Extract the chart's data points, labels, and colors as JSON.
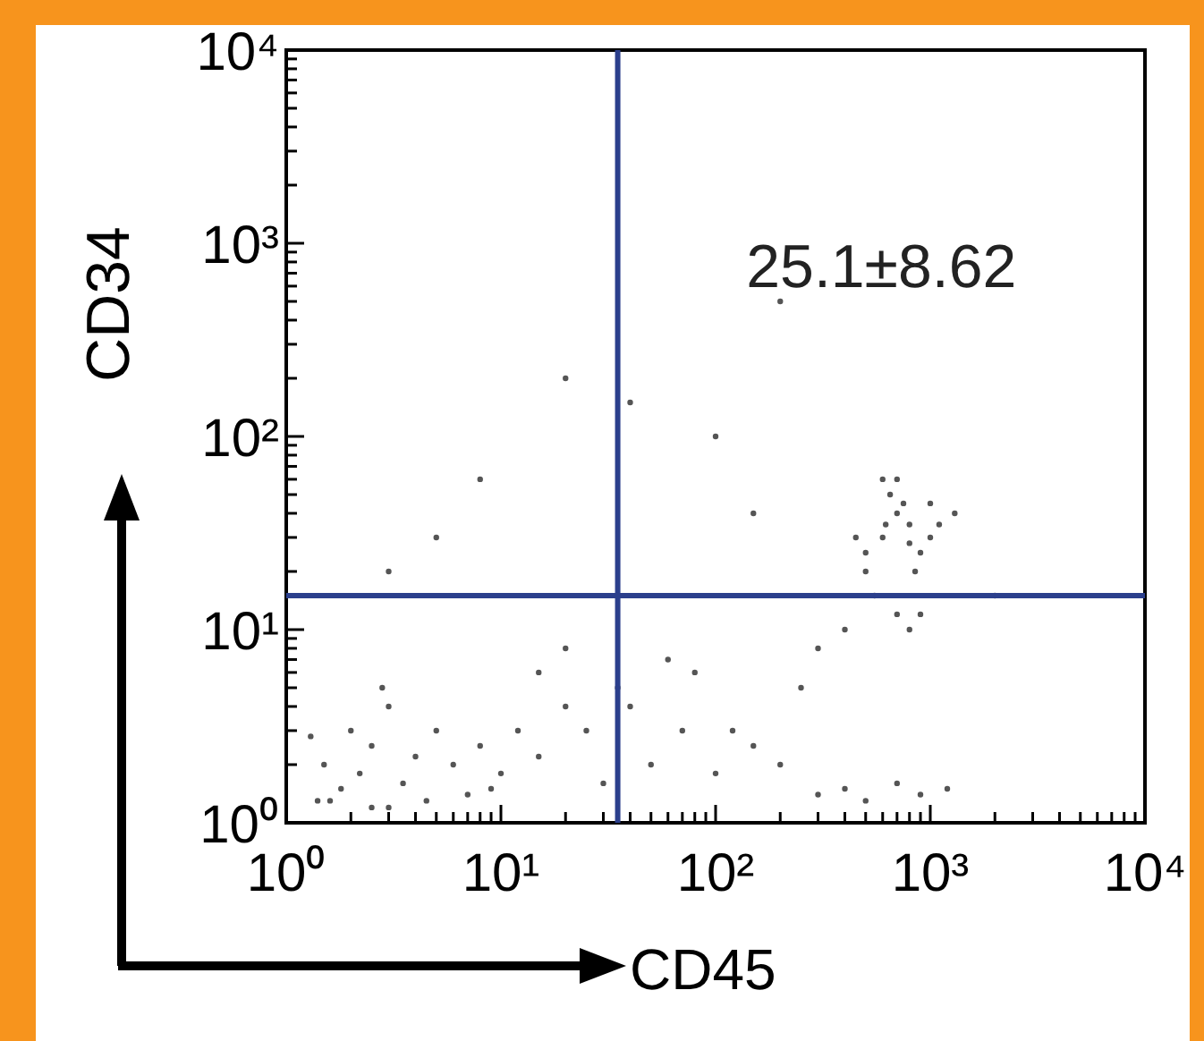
{
  "chart_data": {
    "type": "scatter",
    "xlabel": "CD45",
    "ylabel": "CD34",
    "log": "xy",
    "marker": "circle",
    "grid": false,
    "xlim": [
      1,
      10000
    ],
    "ylim": [
      1,
      10000
    ],
    "xticks": [
      {
        "value": 1,
        "label": "10⁰"
      },
      {
        "value": 2,
        "label": null
      },
      {
        "value": 3,
        "label": null
      },
      {
        "value": 4,
        "label": null
      },
      {
        "value": 5,
        "label": null
      },
      {
        "value": 6,
        "label": null
      },
      {
        "value": 7,
        "label": null
      },
      {
        "value": 8,
        "label": null
      },
      {
        "value": 9,
        "label": null
      },
      {
        "value": 10,
        "label": "10¹"
      },
      {
        "value": 20,
        "label": null
      },
      {
        "value": 30,
        "label": null
      },
      {
        "value": 40,
        "label": null
      },
      {
        "value": 50,
        "label": null
      },
      {
        "value": 60,
        "label": null
      },
      {
        "value": 70,
        "label": null
      },
      {
        "value": 80,
        "label": null
      },
      {
        "value": 90,
        "label": null
      },
      {
        "value": 100,
        "label": "10²"
      },
      {
        "value": 200,
        "label": null
      },
      {
        "value": 300,
        "label": null
      },
      {
        "value": 400,
        "label": null
      },
      {
        "value": 500,
        "label": null
      },
      {
        "value": 600,
        "label": null
      },
      {
        "value": 700,
        "label": null
      },
      {
        "value": 800,
        "label": null
      },
      {
        "value": 900,
        "label": null
      },
      {
        "value": 1000,
        "label": "10³"
      },
      {
        "value": 2000,
        "label": null
      },
      {
        "value": 3000,
        "label": null
      },
      {
        "value": 4000,
        "label": null
      },
      {
        "value": 5000,
        "label": null
      },
      {
        "value": 6000,
        "label": null
      },
      {
        "value": 7000,
        "label": null
      },
      {
        "value": 8000,
        "label": null
      },
      {
        "value": 9000,
        "label": null
      },
      {
        "value": 10000,
        "label": "10⁴"
      }
    ],
    "yticks": [
      {
        "value": 1,
        "label": "10⁰"
      },
      {
        "value": 2,
        "label": null
      },
      {
        "value": 3,
        "label": null
      },
      {
        "value": 4,
        "label": null
      },
      {
        "value": 5,
        "label": null
      },
      {
        "value": 6,
        "label": null
      },
      {
        "value": 7,
        "label": null
      },
      {
        "value": 8,
        "label": null
      },
      {
        "value": 9,
        "label": null
      },
      {
        "value": 10,
        "label": "10¹"
      },
      {
        "value": 20,
        "label": null
      },
      {
        "value": 30,
        "label": null
      },
      {
        "value": 40,
        "label": null
      },
      {
        "value": 50,
        "label": null
      },
      {
        "value": 60,
        "label": null
      },
      {
        "value": 70,
        "label": null
      },
      {
        "value": 80,
        "label": null
      },
      {
        "value": 90,
        "label": null
      },
      {
        "value": 100,
        "label": "10²"
      },
      {
        "value": 200,
        "label": null
      },
      {
        "value": 300,
        "label": null
      },
      {
        "value": 400,
        "label": null
      },
      {
        "value": 500,
        "label": null
      },
      {
        "value": 600,
        "label": null
      },
      {
        "value": 700,
        "label": null
      },
      {
        "value": 800,
        "label": null
      },
      {
        "value": 900,
        "label": null
      },
      {
        "value": 1000,
        "label": "10³"
      },
      {
        "value": 2000,
        "label": null
      },
      {
        "value": 3000,
        "label": null
      },
      {
        "value": 4000,
        "label": null
      },
      {
        "value": 5000,
        "label": null
      },
      {
        "value": 6000,
        "label": null
      },
      {
        "value": 7000,
        "label": null
      },
      {
        "value": 8000,
        "label": null
      },
      {
        "value": 9000,
        "label": null
      },
      {
        "value": 10000,
        "label": "10⁴"
      }
    ],
    "ref_lines": [
      {
        "axis": "x",
        "value": 35,
        "color": "#2b3f8c"
      },
      {
        "axis": "y",
        "value": 15,
        "color": "#2b3f8c"
      }
    ],
    "annotations": [
      "25.1±8.62"
    ],
    "series": [
      {
        "color": "#555555",
        "x": [
          1.5,
          2,
          2.5,
          3,
          1.8,
          2.2,
          4,
          5,
          3.5,
          1.3,
          6,
          8,
          2.8,
          1.6,
          10,
          12,
          15,
          20,
          25,
          7,
          9,
          30,
          40,
          50,
          70,
          100,
          150,
          200,
          300,
          400,
          500,
          700,
          900,
          1200,
          1.4,
          2.5,
          4.5,
          3,
          60,
          80,
          120,
          20,
          35,
          15,
          500,
          600,
          700,
          800,
          900,
          1000,
          650,
          750,
          850,
          550,
          1100,
          700,
          800,
          600,
          900,
          450,
          1000,
          500,
          700,
          800,
          620,
          1300,
          400,
          300,
          250,
          150,
          100,
          2000,
          3,
          5,
          8,
          20,
          40,
          200
        ],
        "values": [
          2,
          3,
          2.5,
          4,
          1.5,
          1.8,
          2.2,
          3,
          1.6,
          2.8,
          2,
          2.5,
          5,
          1.3,
          1.8,
          3,
          2.2,
          4,
          3,
          1.4,
          1.5,
          1.6,
          4,
          2,
          3,
          1.8,
          2.5,
          2,
          1.4,
          1.5,
          1.3,
          1.6,
          1.4,
          1.5,
          1.3,
          1.2,
          1.3,
          1.2,
          7,
          6,
          3,
          8,
          5,
          6,
          20,
          30,
          40,
          35,
          25,
          30,
          50,
          45,
          20,
          15,
          35,
          12,
          10,
          60,
          12,
          30,
          45,
          25,
          60,
          28,
          35,
          40,
          10,
          8,
          5,
          40,
          100,
          15,
          20,
          30,
          60,
          200,
          150,
          500
        ]
      }
    ]
  }
}
